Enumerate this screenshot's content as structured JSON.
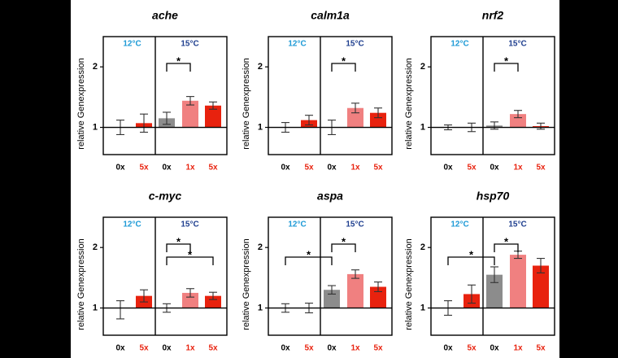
{
  "chart_data": [
    {
      "type": "bar",
      "title": "ache",
      "ylabel": "relative Genexpression",
      "categories": [
        "0x",
        "5x",
        "0x",
        "1x",
        "5x"
      ],
      "values": [
        1.0,
        1.07,
        1.15,
        1.44,
        1.36
      ],
      "errors": [
        0.12,
        0.15,
        0.1,
        0.07,
        0.06
      ],
      "colors": [
        "none",
        "#e8220e",
        "#8c8c8c",
        "#f08080",
        "#e8220e"
      ],
      "tick_label_colors": [
        "#000000",
        "#e8220e",
        "#000000",
        "#e8220e",
        "#e8220e"
      ],
      "groups": [
        {
          "label": "12°C",
          "color": "#1e9ad6",
          "span": [
            0,
            1
          ]
        },
        {
          "label": "15°C",
          "color": "#1f3f8f",
          "span": [
            2,
            4
          ]
        }
      ],
      "significance": [
        {
          "between": [
            2,
            3
          ],
          "text": "*"
        }
      ],
      "baseline": 1,
      "ylim": [
        0.55,
        2.5
      ],
      "yticks": [
        1,
        2
      ]
    },
    {
      "type": "bar",
      "title": "calm1a",
      "ylabel": "relative Genexpression",
      "categories": [
        "0x",
        "5x",
        "0x",
        "1x",
        "5x"
      ],
      "values": [
        1.0,
        1.12,
        1.0,
        1.32,
        1.24
      ],
      "errors": [
        0.08,
        0.08,
        0.12,
        0.08,
        0.08
      ],
      "colors": [
        "none",
        "#e8220e",
        "#8c8c8c",
        "#f08080",
        "#e8220e"
      ],
      "tick_label_colors": [
        "#000000",
        "#e8220e",
        "#000000",
        "#e8220e",
        "#e8220e"
      ],
      "groups": [
        {
          "label": "12°C",
          "color": "#1e9ad6",
          "span": [
            0,
            1
          ]
        },
        {
          "label": "15°C",
          "color": "#1f3f8f",
          "span": [
            2,
            4
          ]
        }
      ],
      "significance": [
        {
          "between": [
            2,
            3
          ],
          "text": "*"
        }
      ],
      "baseline": 1,
      "ylim": [
        0.55,
        2.5
      ],
      "yticks": [
        1,
        2
      ]
    },
    {
      "type": "bar",
      "title": "nrf2",
      "ylabel": "relative Genexpression",
      "categories": [
        "0x",
        "5x",
        "0x",
        "1x",
        "5x"
      ],
      "values": [
        1.0,
        1.0,
        1.03,
        1.22,
        1.02
      ],
      "errors": [
        0.04,
        0.07,
        0.06,
        0.06,
        0.05
      ],
      "colors": [
        "none",
        "#e8220e",
        "#8c8c8c",
        "#f08080",
        "#e8220e"
      ],
      "tick_label_colors": [
        "#000000",
        "#e8220e",
        "#000000",
        "#e8220e",
        "#e8220e"
      ],
      "groups": [
        {
          "label": "12°C",
          "color": "#1e9ad6",
          "span": [
            0,
            1
          ]
        },
        {
          "label": "15°C",
          "color": "#1f3f8f",
          "span": [
            2,
            4
          ]
        }
      ],
      "significance": [
        {
          "between": [
            2,
            3
          ],
          "text": "*"
        }
      ],
      "baseline": 1,
      "ylim": [
        0.55,
        2.5
      ],
      "yticks": [
        1,
        2
      ]
    },
    {
      "type": "bar",
      "title": "c-myc",
      "ylabel": "relative Genexpression",
      "categories": [
        "0x",
        "5x",
        "0x",
        "1x",
        "5x"
      ],
      "values": [
        0.97,
        1.2,
        1.0,
        1.25,
        1.2
      ],
      "errors": [
        0.15,
        0.1,
        0.07,
        0.07,
        0.06
      ],
      "colors": [
        "none",
        "#e8220e",
        "#8c8c8c",
        "#f08080",
        "#e8220e"
      ],
      "tick_label_colors": [
        "#000000",
        "#e8220e",
        "#000000",
        "#e8220e",
        "#e8220e"
      ],
      "groups": [
        {
          "label": "12°C",
          "color": "#1e9ad6",
          "span": [
            0,
            1
          ]
        },
        {
          "label": "15°C",
          "color": "#1f3f8f",
          "span": [
            2,
            4
          ]
        }
      ],
      "significance": [
        {
          "between": [
            2,
            3
          ],
          "text": "*"
        },
        {
          "between": [
            2,
            4
          ],
          "text": "*"
        }
      ],
      "baseline": 1,
      "ylim": [
        0.55,
        2.5
      ],
      "yticks": [
        1,
        2
      ]
    },
    {
      "type": "bar",
      "title": "aspa",
      "ylabel": "relative Genexpression",
      "categories": [
        "0x",
        "5x",
        "0x",
        "1x",
        "5x"
      ],
      "values": [
        1.0,
        1.0,
        1.3,
        1.56,
        1.35
      ],
      "errors": [
        0.07,
        0.08,
        0.07,
        0.07,
        0.08
      ],
      "colors": [
        "none",
        "#e8220e",
        "#8c8c8c",
        "#f08080",
        "#e8220e"
      ],
      "tick_label_colors": [
        "#000000",
        "#e8220e",
        "#000000",
        "#e8220e",
        "#e8220e"
      ],
      "groups": [
        {
          "label": "12°C",
          "color": "#1e9ad6",
          "span": [
            0,
            1
          ]
        },
        {
          "label": "15°C",
          "color": "#1f3f8f",
          "span": [
            2,
            4
          ]
        }
      ],
      "significance": [
        {
          "between": [
            2,
            3
          ],
          "text": "*"
        },
        {
          "between": [
            0,
            2
          ],
          "text": "*"
        }
      ],
      "baseline": 1,
      "ylim": [
        0.55,
        2.5
      ],
      "yticks": [
        1,
        2
      ]
    },
    {
      "type": "bar",
      "title": "hsp70",
      "ylabel": "relative Genexpression",
      "categories": [
        "0x",
        "5x",
        "0x",
        "1x",
        "5x"
      ],
      "values": [
        1.0,
        1.23,
        1.55,
        1.88,
        1.7
      ],
      "errors": [
        0.12,
        0.15,
        0.13,
        0.06,
        0.12
      ],
      "colors": [
        "none",
        "#e8220e",
        "#8c8c8c",
        "#f08080",
        "#e8220e"
      ],
      "tick_label_colors": [
        "#000000",
        "#e8220e",
        "#000000",
        "#e8220e",
        "#e8220e"
      ],
      "groups": [
        {
          "label": "12°C",
          "color": "#1e9ad6",
          "span": [
            0,
            1
          ]
        },
        {
          "label": "15°C",
          "color": "#1f3f8f",
          "span": [
            2,
            4
          ]
        }
      ],
      "significance": [
        {
          "between": [
            2,
            3
          ],
          "text": "*"
        },
        {
          "between": [
            0,
            2
          ],
          "text": "*"
        }
      ],
      "baseline": 1,
      "ylim": [
        0.55,
        2.5
      ],
      "yticks": [
        1,
        2
      ]
    }
  ]
}
